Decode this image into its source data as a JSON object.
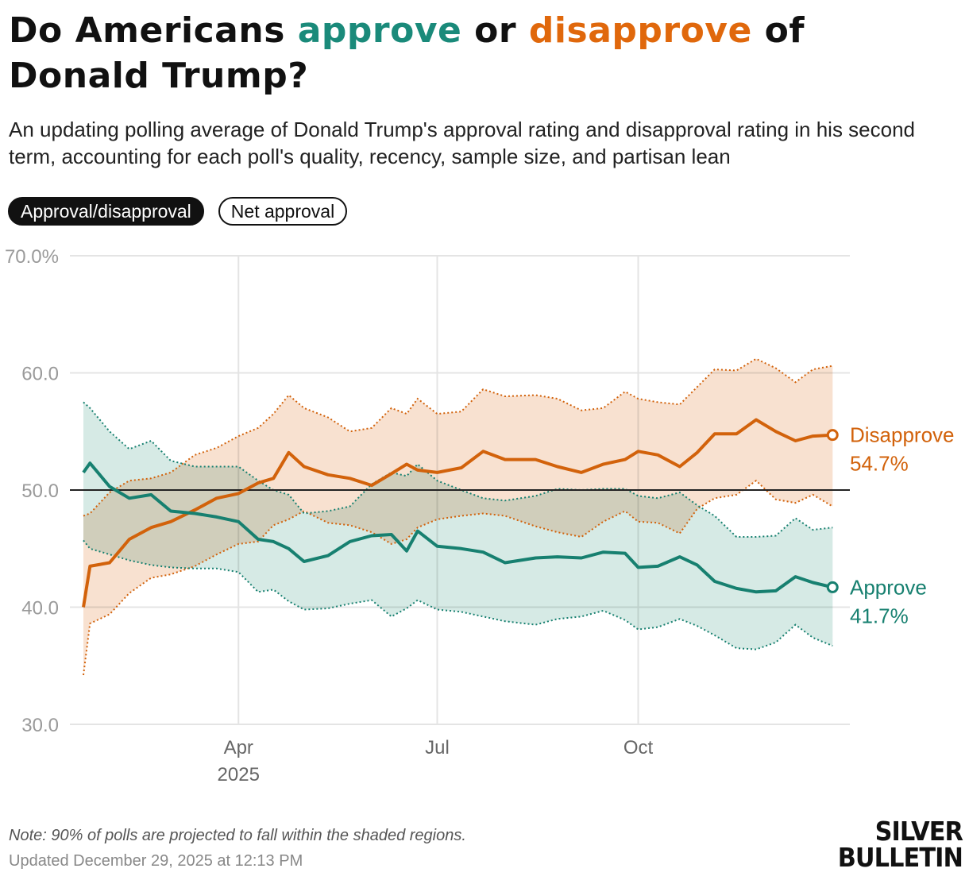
{
  "header": {
    "title_parts": [
      "Do Americans ",
      "approve",
      " or ",
      "disapprove",
      " of Donald Trump?"
    ],
    "subtitle": "An updating polling average of Donald Trump's approval rating and disapproval rating in his second term, accounting for each poll's quality, recency, sample size, and partisan lean"
  },
  "toggles": [
    {
      "label": "Approval/disapproval",
      "active": true
    },
    {
      "label": "Net approval",
      "active": false
    }
  ],
  "footer": {
    "note": "Note: 90% of polls are projected to fall within the shaded regions.",
    "updated": "Updated December 29, 2025 at 12:13 PM",
    "logo_line1": "SILVER",
    "logo_line2": "BULLETIN"
  },
  "colors": {
    "approve": "#178070",
    "disapprove": "#d2620b",
    "approve_band": "#cfe6e1",
    "disapprove_band": "#f7dcc8",
    "reference_line": "#222222",
    "grid": "#e4e4e4"
  },
  "chart_data": {
    "type": "line",
    "ylim": [
      30,
      70
    ],
    "yticks": [
      "70.0%",
      "60.0",
      "50.0",
      "40.0",
      "30.0"
    ],
    "ytick_values": [
      70,
      60,
      50,
      40,
      30
    ],
    "xticks": [
      {
        "date": "2025-04-01",
        "label": "Apr",
        "sublabel": "2025"
      },
      {
        "date": "2025-07-01",
        "label": "Jul",
        "sublabel": ""
      },
      {
        "date": "2025-10-01",
        "label": "Oct",
        "sublabel": ""
      }
    ],
    "reference_line": 50,
    "grid": true,
    "dates": [
      "2025-01-20",
      "2025-01-23",
      "2025-02-01",
      "2025-02-10",
      "2025-02-20",
      "2025-03-01",
      "2025-03-12",
      "2025-03-22",
      "2025-04-01",
      "2025-04-10",
      "2025-04-17",
      "2025-04-24",
      "2025-05-01",
      "2025-05-12",
      "2025-05-22",
      "2025-06-01",
      "2025-06-10",
      "2025-06-17",
      "2025-06-22",
      "2025-07-01",
      "2025-07-12",
      "2025-07-22",
      "2025-08-01",
      "2025-08-15",
      "2025-08-25",
      "2025-09-05",
      "2025-09-15",
      "2025-09-25",
      "2025-10-01",
      "2025-10-10",
      "2025-10-20",
      "2025-10-28",
      "2025-11-05",
      "2025-11-15",
      "2025-11-24",
      "2025-12-03",
      "2025-12-12",
      "2025-12-20",
      "2025-12-29"
    ],
    "series": [
      {
        "name": "Disapprove",
        "key": "disapprove",
        "final_label": "54.7%",
        "values": [
          40.0,
          43.5,
          43.8,
          45.8,
          46.8,
          47.3,
          48.3,
          49.3,
          49.7,
          50.6,
          51.0,
          53.2,
          52.0,
          51.3,
          51.0,
          50.4,
          51.4,
          52.2,
          51.7,
          51.5,
          51.9,
          53.3,
          52.6,
          52.6,
          52.0,
          51.5,
          52.2,
          52.6,
          53.3,
          53.0,
          52.0,
          53.2,
          54.8,
          54.8,
          56.0,
          55.0,
          54.2,
          54.6,
          54.7
        ],
        "upper": [
          47.8,
          48.0,
          49.8,
          50.8,
          51.0,
          51.5,
          53.0,
          53.6,
          54.6,
          55.3,
          56.5,
          58.1,
          57.0,
          56.2,
          55.0,
          55.3,
          57.0,
          56.5,
          57.8,
          56.5,
          56.7,
          58.6,
          58.0,
          58.1,
          57.8,
          56.8,
          57.0,
          58.4,
          57.8,
          57.5,
          57.3,
          58.8,
          60.3,
          60.2,
          61.2,
          60.4,
          59.2,
          60.3,
          60.6
        ],
        "lower": [
          34.2,
          38.6,
          39.4,
          41.2,
          42.5,
          42.8,
          43.5,
          44.5,
          45.4,
          45.6,
          47.0,
          47.5,
          48.2,
          47.2,
          47.0,
          46.4,
          45.4,
          45.8,
          46.8,
          47.5,
          47.8,
          48.0,
          47.8,
          46.9,
          46.4,
          46.0,
          47.3,
          48.2,
          47.3,
          47.2,
          46.3,
          48.4,
          49.3,
          49.6,
          50.8,
          49.2,
          48.9,
          49.6,
          48.6
        ]
      },
      {
        "name": "Approve",
        "key": "approve",
        "final_label": "41.7%",
        "values": [
          51.5,
          52.3,
          50.3,
          49.3,
          49.6,
          48.2,
          48.0,
          47.7,
          47.3,
          45.8,
          45.6,
          45.0,
          43.9,
          44.4,
          45.6,
          46.1,
          46.2,
          44.8,
          46.5,
          45.2,
          45.0,
          44.7,
          43.8,
          44.2,
          44.3,
          44.2,
          44.7,
          44.6,
          43.4,
          43.5,
          44.3,
          43.6,
          42.2,
          41.6,
          41.3,
          41.4,
          42.6,
          42.1,
          41.7
        ],
        "upper": [
          57.5,
          57.0,
          55.0,
          53.5,
          54.2,
          52.5,
          52.0,
          52.0,
          52.0,
          50.8,
          50.0,
          49.6,
          48.0,
          48.2,
          48.6,
          50.5,
          51.5,
          51.2,
          52.2,
          50.8,
          50.0,
          49.3,
          49.1,
          49.5,
          50.1,
          50.0,
          50.1,
          50.1,
          49.5,
          49.3,
          49.8,
          48.7,
          47.8,
          46.0,
          46.0,
          46.1,
          47.6,
          46.6,
          46.8
        ],
        "lower": [
          45.7,
          45.0,
          44.5,
          44.0,
          43.6,
          43.4,
          43.3,
          43.3,
          43.0,
          41.3,
          41.5,
          40.5,
          39.8,
          39.9,
          40.3,
          40.6,
          39.2,
          39.9,
          40.6,
          39.8,
          39.6,
          39.2,
          38.8,
          38.5,
          39.0,
          39.2,
          39.7,
          38.9,
          38.1,
          38.3,
          39.0,
          38.4,
          37.6,
          36.5,
          36.4,
          37.0,
          38.5,
          37.4,
          36.7
        ]
      }
    ]
  }
}
